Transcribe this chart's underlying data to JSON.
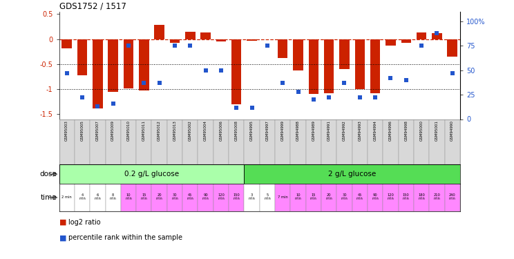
{
  "title": "GDS1752 / 1517",
  "samples": [
    "GSM95003",
    "GSM95005",
    "GSM95007",
    "GSM95009",
    "GSM95010",
    "GSM95011",
    "GSM95012",
    "GSM95013",
    "GSM95002",
    "GSM95004",
    "GSM95006",
    "GSM95008",
    "GSM94995",
    "GSM94997",
    "GSM94999",
    "GSM94988",
    "GSM94989",
    "GSM94991",
    "GSM94992",
    "GSM94993",
    "GSM94994",
    "GSM94996",
    "GSM94998",
    "GSM95000",
    "GSM95001",
    "GSM94990"
  ],
  "log2_ratio": [
    -0.18,
    -0.72,
    -1.38,
    -1.05,
    -0.98,
    -1.02,
    0.28,
    -0.08,
    0.15,
    0.13,
    -0.05,
    -1.3,
    -0.03,
    0.0,
    -0.38,
    -0.62,
    -1.1,
    -1.08,
    -0.6,
    -1.0,
    -1.08,
    -0.13,
    -0.08,
    0.13,
    0.12,
    -0.35
  ],
  "percentile_rank": [
    47,
    22,
    13,
    16,
    75,
    37,
    37,
    75,
    75,
    50,
    50,
    12,
    12,
    75,
    37,
    28,
    20,
    22,
    37,
    22,
    22,
    42,
    40,
    75,
    88,
    47
  ],
  "dose_groups": [
    {
      "label": "0.2 g/L glucose",
      "start": 0,
      "end": 12,
      "color": "#aaffaa"
    },
    {
      "label": "2 g/L glucose",
      "start": 12,
      "end": 26,
      "color": "#55dd55"
    }
  ],
  "time_labels": [
    "2 min",
    "4\nmin",
    "6\nmin",
    "8\nmin",
    "10\nmin",
    "15\nmin",
    "20\nmin",
    "30\nmin",
    "45\nmin",
    "90\nmin",
    "120\nmin",
    "150\nmin",
    "3\nmin",
    "5\nmin",
    "7 min",
    "10\nmin",
    "15\nmin",
    "20\nmin",
    "30\nmin",
    "45\nmin",
    "90\nmin",
    "120\nmin",
    "150\nmin",
    "180\nmin",
    "210\nmin",
    "240\nmin"
  ],
  "time_colors": [
    "#ffffff",
    "#ffffff",
    "#ffffff",
    "#ffffff",
    "#ff88ff",
    "#ff88ff",
    "#ff88ff",
    "#ff88ff",
    "#ff88ff",
    "#ff88ff",
    "#ff88ff",
    "#ff88ff",
    "#ffffff",
    "#ffffff",
    "#ff88ff",
    "#ff88ff",
    "#ff88ff",
    "#ff88ff",
    "#ff88ff",
    "#ff88ff",
    "#ff88ff",
    "#ff88ff",
    "#ff88ff",
    "#ff88ff",
    "#ff88ff",
    "#ff88ff"
  ],
  "bar_color": "#cc2200",
  "dot_color": "#2255cc",
  "ylim_left": [
    -1.6,
    0.55
  ],
  "ylim_right": [
    0,
    110
  ],
  "yticks_left": [
    -1.5,
    -1.0,
    -0.5,
    0.0,
    0.5
  ],
  "ytick_labels_left": [
    "-1.5",
    "-1",
    "-0.5",
    "0",
    "0.5"
  ],
  "yticks_right": [
    0,
    25,
    50,
    75,
    100
  ],
  "ytick_labels_right": [
    "0",
    "25",
    "50",
    "75",
    "100%"
  ],
  "hline_y": [
    0.0,
    -0.5,
    -1.0
  ],
  "hline_styles": [
    "--",
    ":",
    ":"
  ],
  "hline_colors": [
    "#cc2200",
    "#000000",
    "#000000"
  ],
  "hline_lw": [
    0.9,
    0.7,
    0.7
  ]
}
